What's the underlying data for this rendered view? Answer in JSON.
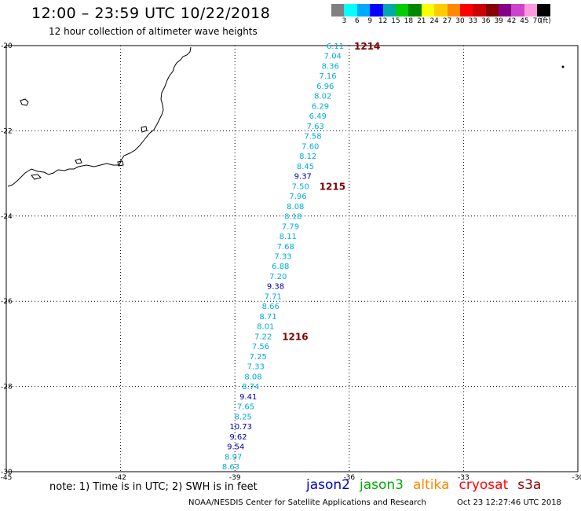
{
  "header": {
    "title": "12:00 – 23:59 UTC 10/22/2018",
    "subtitle": "12 hour collection of altimeter wave heights"
  },
  "colorbar": {
    "colors": [
      "#808080",
      "#00ffff",
      "#00aaff",
      "#0000ff",
      "#00aaaa",
      "#00cc00",
      "#008800",
      "#ffff00",
      "#ffcc00",
      "#ff8800",
      "#ff0000",
      "#cc0000",
      "#880000",
      "#880088",
      "#cc44cc",
      "#ff99dd",
      "#000000"
    ],
    "labels": [
      "3",
      "6",
      "9",
      "12",
      "15",
      "18",
      "21",
      "24",
      "27",
      "30",
      "33",
      "36",
      "39",
      "42",
      "45",
      "70",
      "(ft)"
    ]
  },
  "map": {
    "lon_range": [
      -45,
      -30
    ],
    "lat_range": [
      -30,
      -20
    ],
    "x_ticks": [
      "-45",
      "-42",
      "-39",
      "-36",
      "-33",
      "-30"
    ],
    "y_ticks": [
      "-20",
      "-22",
      "-24",
      "-26",
      "-28",
      "-30"
    ]
  },
  "swh": {
    "dark_color": "#0000aa",
    "light_color": "#00aadd",
    "values": [
      "6.11",
      "7.04",
      "8.36",
      "7.16",
      "6.96",
      "8.02",
      "6.29",
      "6.49",
      "7.63",
      "7.58",
      "7.60",
      "8.12",
      "8.45",
      "9.37",
      "7.50",
      "7.96",
      "8.08",
      "8.18",
      "7.79",
      "8.11",
      "7.68",
      "7.33",
      "6.88",
      "7.20",
      "9.38",
      "7.71",
      "8.66",
      "8.71",
      "8.01",
      "7.22",
      "7.56",
      "7.25",
      "7.33",
      "8.08",
      "8.74",
      "9.41",
      "7.65",
      "8.25",
      "10.73",
      "9.62",
      "9.54",
      "8.97",
      "8.63"
    ],
    "dark_flags": [
      false,
      false,
      false,
      false,
      false,
      false,
      false,
      false,
      false,
      false,
      false,
      false,
      false,
      true,
      false,
      false,
      false,
      false,
      false,
      false,
      false,
      false,
      false,
      false,
      true,
      false,
      false,
      false,
      false,
      false,
      false,
      false,
      false,
      false,
      false,
      true,
      false,
      false,
      true,
      true,
      true,
      false,
      false
    ],
    "pass_labels": [
      {
        "text": "1214",
        "index": 0
      },
      {
        "text": "1215",
        "index": 14
      },
      {
        "text": "1216",
        "index": 29
      }
    ]
  },
  "footer": {
    "note": "note: 1) Time is in UTC; 2) SWH is in feet",
    "satellites": [
      {
        "name": "jason2",
        "color": "#0000cc"
      },
      {
        "name": "jason3",
        "color": "#00aa00"
      },
      {
        "name": "altika",
        "color": "#ff8800"
      },
      {
        "name": "cryosat",
        "color": "#ff0000"
      },
      {
        "name": "s3a",
        "color": "#880000"
      }
    ],
    "credit": "NOAA/NESDIS Center for Satellite Applications and Research",
    "timestamp": "Oct 23 12:27:46 UTC 2018"
  }
}
